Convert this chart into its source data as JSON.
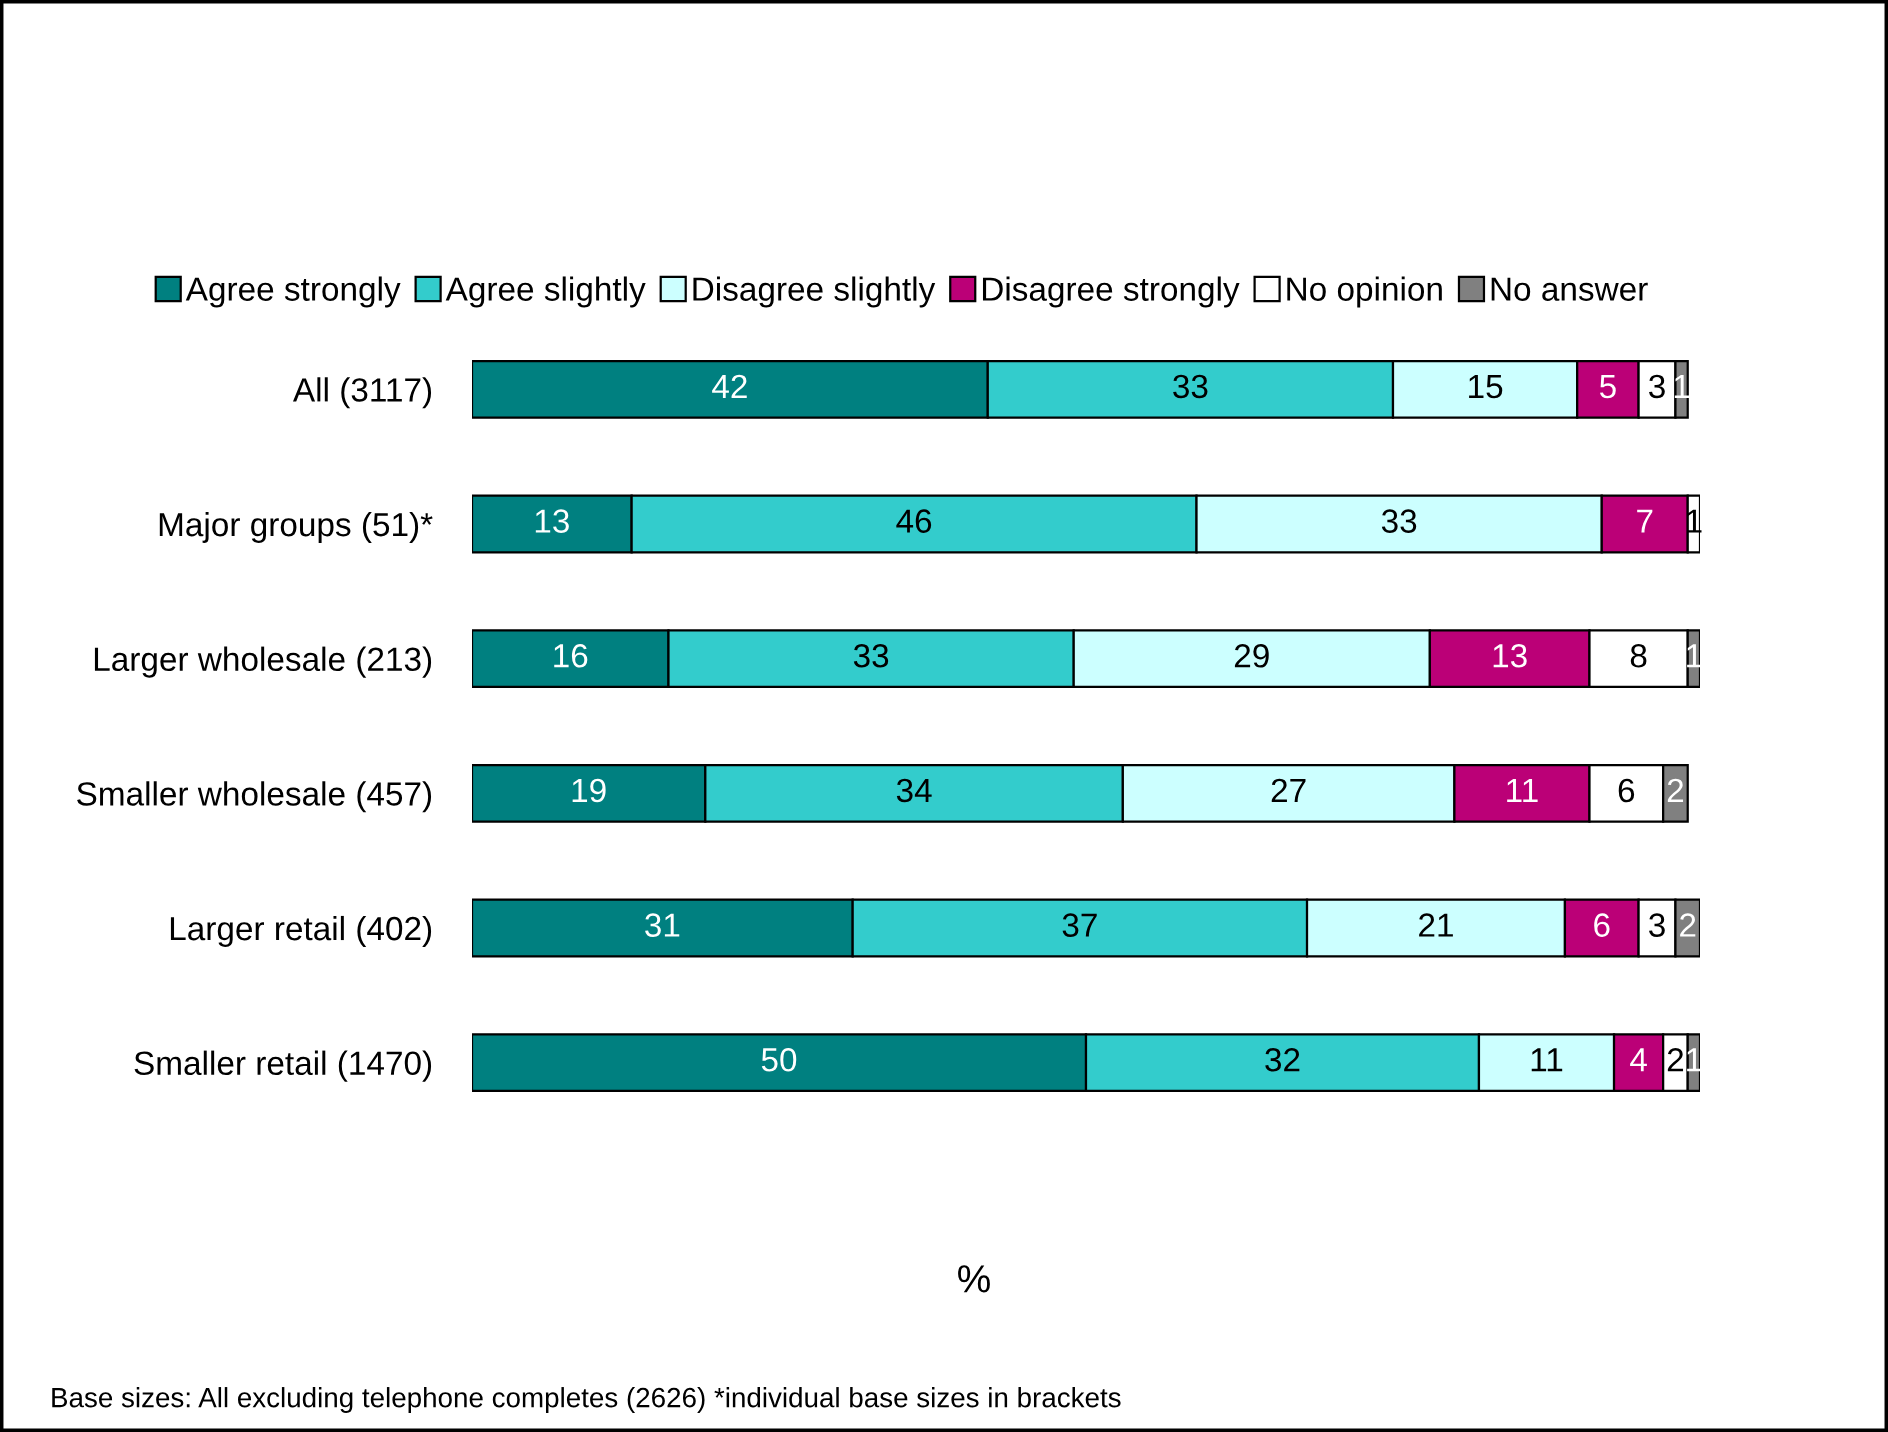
{
  "chart_data": {
    "type": "bar",
    "orientation": "horizontal",
    "stacked": true,
    "data_labels": true,
    "legend": "top",
    "tick_labels": "y",
    "grid": false,
    "xlabel": "%",
    "categories": [
      "All (3117)",
      "Major groups (51)*",
      "Larger wholesale (213)",
      "Smaller wholesale (457)",
      "Larger retail (402)",
      "Smaller retail (1470)"
    ],
    "series": [
      {
        "name": "Agree strongly",
        "color": "#008080",
        "values": [
          42,
          13,
          16,
          19,
          31,
          50
        ]
      },
      {
        "name": "Agree slightly",
        "color": "#33cccc",
        "values": [
          33,
          46,
          33,
          34,
          37,
          32
        ]
      },
      {
        "name": "Disagree slightly",
        "color": "#ccffff",
        "values": [
          15,
          33,
          29,
          27,
          21,
          11
        ]
      },
      {
        "name": "Disagree strongly",
        "color": "#bb0077",
        "values": [
          5,
          7,
          13,
          11,
          6,
          4
        ]
      },
      {
        "name": "No opinion",
        "color": "#ffffff",
        "values": [
          3,
          1,
          8,
          6,
          3,
          2
        ]
      },
      {
        "name": "No answer",
        "color": "#808080",
        "values": [
          1,
          null,
          1,
          2,
          2,
          1
        ]
      }
    ],
    "annotations": [
      "Base sizes: All excluding telephone completes (2626) *individual base sizes in brackets"
    ]
  }
}
